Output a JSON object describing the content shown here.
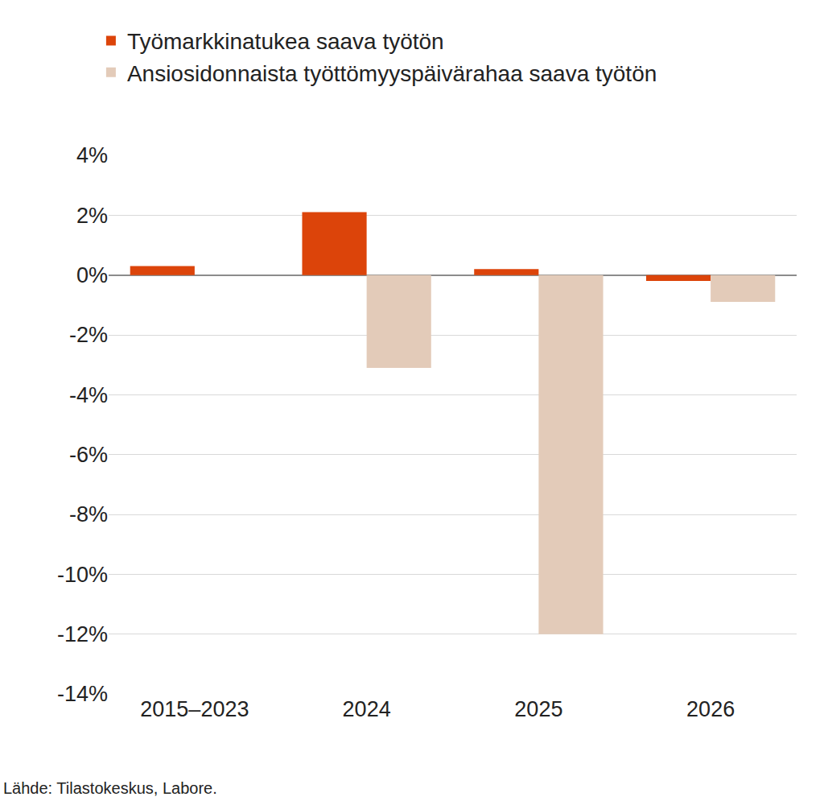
{
  "chart_data": {
    "type": "bar",
    "categories": [
      "2015–2023",
      "2024",
      "2025",
      "2026"
    ],
    "series": [
      {
        "name": "Työmarkkinatukea saava työtön",
        "color": "#dc440a",
        "values": [
          0.3,
          2.1,
          0.2,
          -0.2
        ]
      },
      {
        "name": "Ansiosidonnaista työttömyyspäivärahaa saava työtön",
        "color": "#e3cbb9",
        "values": [
          null,
          -3.1,
          -12.0,
          -0.9
        ]
      }
    ],
    "ylim": [
      -14,
      4
    ],
    "yticks": [
      {
        "value": -14,
        "label": "-14%"
      },
      {
        "value": -12,
        "label": "-12%"
      },
      {
        "value": -10,
        "label": "-10%"
      },
      {
        "value": -8,
        "label": "-8%"
      },
      {
        "value": -6,
        "label": "-6%"
      },
      {
        "value": -4,
        "label": "-4%"
      },
      {
        "value": -2,
        "label": "-2%"
      },
      {
        "value": 0,
        "label": "0%"
      },
      {
        "value": 2,
        "label": "2%"
      },
      {
        "value": 4,
        "label": "4%"
      }
    ],
    "grid": true,
    "legend": "top left",
    "annotations": [
      "Lähde: Tilastokeskus, Labore."
    ]
  }
}
